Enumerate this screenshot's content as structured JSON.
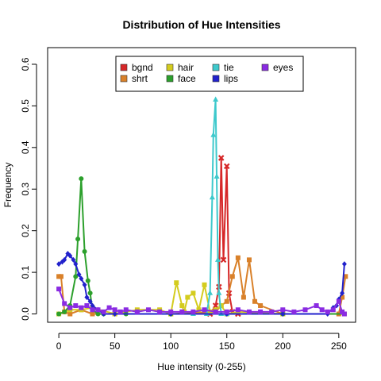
{
  "chart_data": {
    "type": "line",
    "title": "Distribution of Hue Intensities",
    "xlabel": "Hue  intensity (0-255)",
    "ylabel": "Frequency",
    "xlim": [
      -10,
      265
    ],
    "ylim": [
      -0.02,
      0.64
    ],
    "xticks": [
      0,
      50,
      100,
      150,
      200,
      250
    ],
    "yticks": [
      0.0,
      0.1,
      0.2,
      0.3,
      0.4,
      0.5,
      0.6
    ],
    "legend_placement": "top-center",
    "grid": false,
    "series": [
      {
        "name": "bgnd",
        "color": "#d62728",
        "marker": "x",
        "x": [
          135,
          140,
          143,
          145,
          147,
          150,
          152,
          155,
          160
        ],
        "y": [
          0.0,
          0.02,
          0.065,
          0.375,
          0.13,
          0.355,
          0.05,
          0.005,
          0.0
        ]
      },
      {
        "name": "shrt",
        "color": "#d9812a",
        "marker": "square",
        "x": [
          0,
          2,
          5,
          10,
          20,
          30,
          50,
          100,
          140,
          145,
          150,
          155,
          160,
          165,
          170,
          175,
          180,
          200,
          250,
          253,
          256
        ],
        "y": [
          0.09,
          0.09,
          0.005,
          0.0,
          0.01,
          0.0,
          0.0,
          0.0,
          0.005,
          0.02,
          0.03,
          0.09,
          0.135,
          0.04,
          0.13,
          0.03,
          0.02,
          0.0,
          0.0,
          0.04,
          0.09
        ]
      },
      {
        "name": "hair",
        "color": "#d4cc1e",
        "marker": "square",
        "x": [
          0,
          10,
          20,
          30,
          50,
          70,
          90,
          100,
          105,
          110,
          112,
          115,
          120,
          125,
          130,
          135,
          140,
          145,
          150,
          160,
          200,
          255
        ],
        "y": [
          0.0,
          0.01,
          0.01,
          0.015,
          0.0,
          0.01,
          0.01,
          0.0,
          0.075,
          0.02,
          0.005,
          0.04,
          0.05,
          0.01,
          0.07,
          0.005,
          0.01,
          0.02,
          0.0,
          0.005,
          0.0,
          0.0
        ]
      },
      {
        "name": "face",
        "color": "#2ca02c",
        "marker": "circle",
        "x": [
          0,
          5,
          10,
          15,
          17,
          20,
          23,
          26,
          28,
          30,
          35,
          40,
          60,
          100,
          150,
          200,
          255
        ],
        "y": [
          0.0,
          0.005,
          0.02,
          0.09,
          0.18,
          0.325,
          0.15,
          0.08,
          0.05,
          0.01,
          0.0,
          0.0,
          0.0,
          0.0,
          0.0,
          0.0,
          0.0
        ]
      },
      {
        "name": "tie",
        "color": "#3ec9cc",
        "marker": "triangle",
        "x": [
          120,
          132,
          135,
          137,
          138,
          140,
          141,
          142,
          143,
          145,
          150
        ],
        "y": [
          0.0,
          0.0,
          0.05,
          0.28,
          0.43,
          0.515,
          0.33,
          0.13,
          0.05,
          0.0,
          0.0
        ]
      },
      {
        "name": "lips",
        "color": "#2222cc",
        "marker": "diamond",
        "x": [
          0,
          3,
          5,
          8,
          10,
          13,
          15,
          18,
          20,
          23,
          25,
          28,
          30,
          35,
          40,
          50,
          100,
          150,
          200,
          240,
          245,
          248,
          250,
          253,
          255
        ],
        "y": [
          0.12,
          0.125,
          0.13,
          0.145,
          0.14,
          0.13,
          0.12,
          0.095,
          0.085,
          0.07,
          0.04,
          0.03,
          0.02,
          0.01,
          0.0,
          0.0,
          0.0,
          0.0,
          0.0,
          0.0,
          0.015,
          0.02,
          0.035,
          0.05,
          0.12
        ]
      },
      {
        "name": "eyes",
        "color": "#8a2be2",
        "marker": "square",
        "x": [
          0,
          5,
          10,
          15,
          20,
          25,
          30,
          35,
          40,
          45,
          50,
          55,
          60,
          70,
          80,
          90,
          100,
          110,
          120,
          130,
          140,
          150,
          160,
          170,
          180,
          190,
          200,
          210,
          220,
          230,
          235,
          240,
          245,
          250,
          253,
          255
        ],
        "y": [
          0.06,
          0.025,
          0.015,
          0.02,
          0.015,
          0.02,
          0.01,
          0.01,
          0.005,
          0.015,
          0.01,
          0.005,
          0.01,
          0.005,
          0.01,
          0.005,
          0.005,
          0.005,
          0.005,
          0.01,
          0.005,
          0.005,
          0.01,
          0.005,
          0.005,
          0.005,
          0.01,
          0.005,
          0.01,
          0.02,
          0.01,
          0.005,
          0.01,
          0.03,
          0.005,
          0.0
        ]
      }
    ]
  }
}
